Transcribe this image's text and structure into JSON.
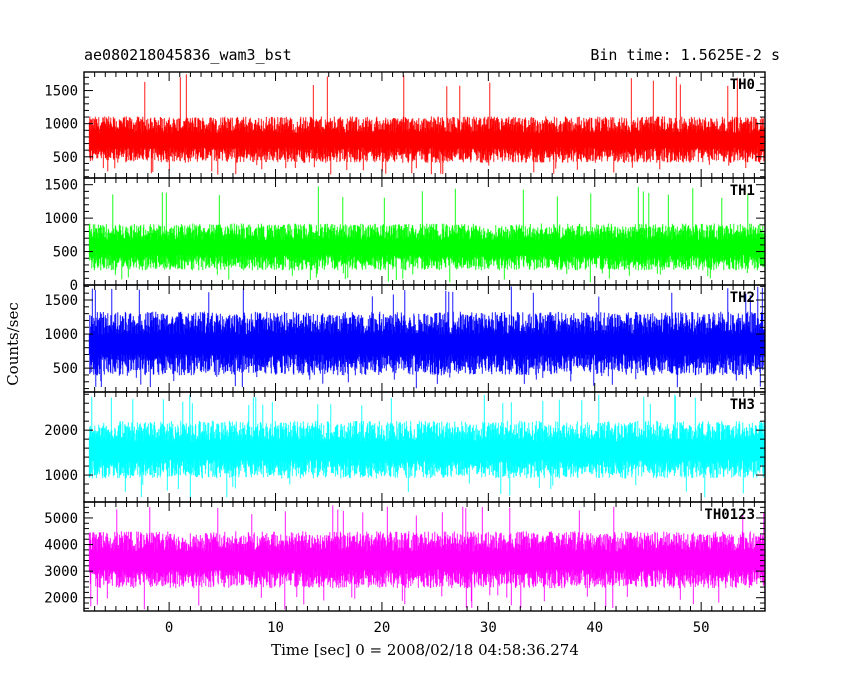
{
  "title_left": "ae080218045836_wam3_bst",
  "title_right": "Bin time: 1.5625E-2 s",
  "chart_data": {
    "type": "line",
    "xlabel": "Time [sec] 0 = 2008/02/18 04:58:36.274",
    "ylabel": "Counts/sec",
    "xlim": [
      -8,
      56
    ],
    "x_ticks": [
      0,
      10,
      20,
      30,
      40,
      50
    ],
    "x_data_range": [
      -7.5,
      56
    ],
    "bin_time_s": 0.015625,
    "panels": [
      {
        "name": "TH0",
        "color": "#ff0000",
        "ylim": [
          180,
          1780
        ],
        "yticks": [
          500,
          1000,
          1500
        ],
        "mean": 750,
        "spread": 180,
        "spike_max": 1750,
        "dip_min": 230
      },
      {
        "name": "TH1",
        "color": "#00ff00",
        "ylim": [
          0,
          1600
        ],
        "yticks": [
          0,
          500,
          1000,
          1500
        ],
        "mean": 560,
        "spread": 180,
        "spike_max": 1480,
        "dip_min": 40
      },
      {
        "name": "TH2",
        "color": "#0000ff",
        "ylim": [
          150,
          1720
        ],
        "yticks": [
          500,
          1000,
          1500
        ],
        "mean": 850,
        "spread": 240,
        "spike_max": 1700,
        "dip_min": 200
      },
      {
        "name": "TH3",
        "color": "#00ffff",
        "ylim": [
          400,
          2850
        ],
        "yticks": [
          1000,
          2000
        ],
        "mean": 1550,
        "spread": 330,
        "spike_max": 2800,
        "dip_min": 500
      },
      {
        "name": "TH0123",
        "color": "#ff00ff",
        "ylim": [
          1500,
          5600
        ],
        "yticks": [
          2000,
          3000,
          4000,
          5000
        ],
        "mean": 3400,
        "spread": 550,
        "spike_max": 5500,
        "dip_min": 1550
      }
    ]
  }
}
